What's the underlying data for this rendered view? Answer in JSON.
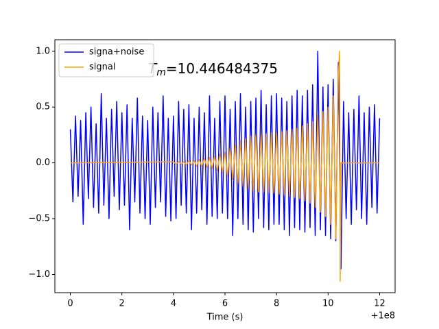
{
  "chart_data": {
    "type": "line",
    "xlabel": "Time (s)",
    "x_offset_text": "+1e8",
    "annotation": {
      "symbol": "T",
      "subscript": "m",
      "text": "=10.446484375"
    },
    "xlim": [
      -0.6,
      12.6
    ],
    "xticks": [
      0,
      2,
      4,
      6,
      8,
      10,
      12
    ],
    "ylim": [
      -1.163,
      1.103
    ],
    "yticks": [
      {
        "value": -1,
        "label": "−1.0"
      },
      {
        "value": -0.5,
        "label": "−0.5"
      },
      {
        "value": 0,
        "label": "0.0"
      },
      0.5,
      {
        "value": 1,
        "label": "1.0"
      }
    ],
    "grid": false,
    "legend": "upper left",
    "series": [
      {
        "name": "signa+noise",
        "color": "#0000ff",
        "x": [
          0,
          0.1,
          0.2,
          0.3,
          0.4,
          0.5,
          0.6,
          0.7,
          0.8,
          0.9,
          1,
          1.1,
          1.2,
          1.3,
          1.4,
          1.5,
          1.6,
          1.7,
          1.8,
          1.9,
          2,
          2.1,
          2.2,
          2.3,
          2.4,
          2.5,
          2.6,
          2.7,
          2.8,
          2.9,
          3,
          3.1,
          3.2,
          3.3,
          3.4,
          3.5,
          3.6,
          3.7,
          3.8,
          3.9,
          4,
          4.1,
          4.2,
          4.3,
          4.4,
          4.5,
          4.6,
          4.7,
          4.8,
          4.9,
          5,
          5.1,
          5.2,
          5.3,
          5.4,
          5.5,
          5.6,
          5.7,
          5.8,
          5.9,
          6,
          6.1,
          6.2,
          6.3,
          6.4,
          6.5,
          6.6,
          6.7,
          6.8,
          6.9,
          7,
          7.1,
          7.2,
          7.3,
          7.4,
          7.5,
          7.6,
          7.7,
          7.8,
          7.9,
          8,
          8.1,
          8.2,
          8.3,
          8.4,
          8.5,
          8.6,
          8.7,
          8.8,
          8.9,
          9,
          9.1,
          9.2,
          9.3,
          9.4,
          9.5,
          9.6,
          9.7,
          9.8,
          9.9,
          10,
          10.1,
          10.2,
          10.3,
          10.4,
          10.5,
          10.6,
          10.7,
          10.8,
          10.9,
          11,
          11.1,
          11.2,
          11.3,
          11.4,
          11.5,
          11.6,
          11.7,
          11.8,
          11.9,
          12
        ],
        "values": [
          0.3,
          -0.35,
          0.42,
          -0.3,
          0.38,
          -0.55,
          0.45,
          -0.32,
          0.5,
          -0.4,
          0.35,
          -0.45,
          0.62,
          -0.38,
          0.4,
          -0.5,
          0.48,
          -0.3,
          0.55,
          -0.42,
          0.45,
          -0.38,
          0.52,
          -0.6,
          0.4,
          -0.35,
          0.58,
          -0.45,
          0.42,
          -0.5,
          0.38,
          -0.55,
          0.5,
          -0.4,
          0.45,
          -0.35,
          0.6,
          -0.48,
          0.4,
          -0.52,
          0.42,
          -0.5,
          0.55,
          -0.38,
          0.48,
          -0.45,
          0.52,
          -0.6,
          0.4,
          -0.45,
          0.5,
          -0.42,
          0.45,
          -0.55,
          0.6,
          -0.48,
          0.4,
          -0.5,
          0.55,
          -0.45,
          0.6,
          -0.5,
          0.48,
          -0.65,
          0.55,
          -0.5,
          0.62,
          -0.55,
          0.5,
          -0.6,
          0.55,
          -0.62,
          0.58,
          -0.5,
          0.65,
          -0.58,
          0.52,
          -0.6,
          0.6,
          -0.55,
          0.62,
          -0.55,
          0.58,
          -0.6,
          0.55,
          -0.65,
          0.6,
          -0.58,
          0.65,
          -0.6,
          0.6,
          -0.62,
          0.65,
          -0.58,
          0.7,
          -0.65,
          1.0,
          -0.6,
          0.68,
          -0.65,
          0.7,
          -0.68,
          0.75,
          -0.7,
          0.9,
          -0.95,
          0.55,
          -0.5,
          0.45,
          -0.55,
          0.48,
          -0.42,
          0.6,
          -0.5,
          0.45,
          -0.55,
          0.5,
          -0.4,
          0.52,
          -0.45,
          0.4
        ]
      },
      {
        "name": "signal",
        "color": "#ffa500",
        "x": [
          0,
          4,
          4.1,
          4.2,
          4.3,
          4.4,
          4.5,
          4.6,
          4.7,
          4.8,
          4.9,
          5,
          5.1,
          5.2,
          5.3,
          5.4,
          5.5,
          5.6,
          5.7,
          5.8,
          5.9,
          6,
          6.1,
          6.2,
          6.3,
          6.4,
          6.5,
          6.6,
          6.7,
          6.8,
          6.9,
          7,
          7.1,
          7.2,
          7.3,
          7.4,
          7.5,
          7.6,
          7.7,
          7.8,
          7.9,
          8,
          8.1,
          8.2,
          8.3,
          8.4,
          8.5,
          8.6,
          8.7,
          8.8,
          8.9,
          9,
          9.1,
          9.2,
          9.3,
          9.4,
          9.5,
          9.6,
          9.7,
          9.8,
          9.9,
          10,
          10.1,
          10.2,
          10.3,
          10.4,
          10.45,
          10.47,
          10.5,
          12
        ],
        "values": [
          0,
          0.01,
          -0.01,
          0.01,
          -0.01,
          0.01,
          -0.02,
          0.02,
          -0.02,
          0.02,
          -0.03,
          0.03,
          -0.03,
          0.04,
          -0.04,
          0.05,
          -0.05,
          0.06,
          -0.07,
          0.08,
          -0.09,
          0.1,
          -0.12,
          0.13,
          -0.15,
          0.16,
          -0.18,
          0.2,
          -0.21,
          0.22,
          -0.23,
          0.24,
          -0.25,
          0.25,
          -0.26,
          0.26,
          -0.26,
          0.26,
          -0.27,
          0.27,
          -0.27,
          0.27,
          -0.28,
          0.28,
          -0.29,
          0.29,
          -0.3,
          0.3,
          -0.31,
          0.31,
          -0.32,
          0.33,
          -0.34,
          0.35,
          -0.36,
          0.37,
          -0.4,
          0.42,
          -0.44,
          0.46,
          -0.48,
          0.5,
          -0.55,
          0.6,
          -0.68,
          0.8,
          1.0,
          -1.06,
          0,
          0
        ]
      }
    ]
  }
}
